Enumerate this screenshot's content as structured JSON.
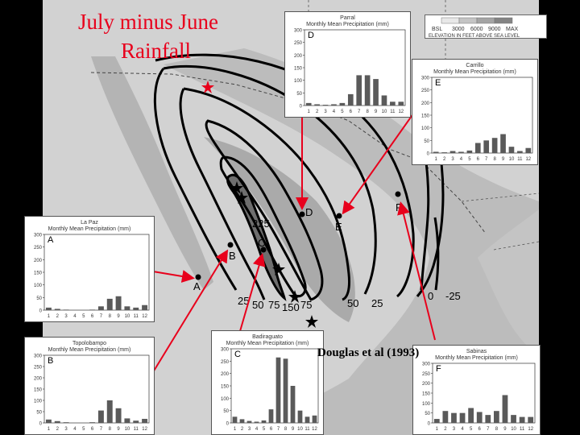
{
  "title": {
    "line1": "July minus June",
    "line2": "Rainfall"
  },
  "citation": "Douglas et al (1993)",
  "legend": {
    "scale_labels": [
      "BSL",
      "3000",
      "6000",
      "9000",
      "MAX"
    ],
    "caption": "ELEVATION IN FEET ABOVE SEA LEVEL"
  },
  "contour_labels": [
    "225",
    "25",
    "50",
    "75",
    "150",
    "75",
    "50",
    "25",
    "0",
    "-25"
  ],
  "colors": {
    "title": "#e8001c",
    "arrow": "#e8001c",
    "bars": "#5a5a5a"
  },
  "station_labels": [
    "A",
    "B",
    "C",
    "D",
    "E",
    "F"
  ],
  "chart_data": [
    {
      "type": "bar",
      "id": "A",
      "name": "La Paz",
      "title": "Monthly Mean Precipitation (mm)",
      "categories": [
        "1",
        "2",
        "3",
        "4",
        "5",
        "6",
        "7",
        "8",
        "9",
        "10",
        "11",
        "12"
      ],
      "values": [
        10,
        5,
        2,
        0,
        0,
        2,
        15,
        45,
        55,
        15,
        10,
        20
      ],
      "ylim": [
        0,
        300
      ],
      "yticks": [
        0,
        50,
        100,
        150,
        200,
        250,
        300
      ]
    },
    {
      "type": "bar",
      "id": "B",
      "name": "Topolobampo",
      "title": "Monthly Mean Precipitation (mm)",
      "categories": [
        "1",
        "2",
        "3",
        "4",
        "5",
        "6",
        "7",
        "8",
        "9",
        "10",
        "11",
        "12"
      ],
      "values": [
        15,
        8,
        3,
        0,
        0,
        3,
        55,
        100,
        65,
        20,
        10,
        18
      ],
      "ylim": [
        0,
        300
      ],
      "yticks": [
        0,
        50,
        100,
        150,
        200,
        250,
        300
      ]
    },
    {
      "type": "bar",
      "id": "C",
      "name": "Badiraguato",
      "title": "Monthly Mean Precipitation (mm)",
      "categories": [
        "1",
        "2",
        "3",
        "4",
        "5",
        "6",
        "7",
        "8",
        "9",
        "10",
        "11",
        "12"
      ],
      "values": [
        25,
        15,
        8,
        5,
        10,
        55,
        265,
        260,
        150,
        50,
        25,
        30
      ],
      "ylim": [
        0,
        300
      ],
      "yticks": [
        0,
        50,
        100,
        150,
        200,
        250,
        300
      ]
    },
    {
      "type": "bar",
      "id": "D",
      "name": "Parral",
      "title": "Monthly Mean Precipitation (mm)",
      "categories": [
        "1",
        "2",
        "3",
        "4",
        "5",
        "6",
        "7",
        "8",
        "9",
        "10",
        "11",
        "12"
      ],
      "values": [
        10,
        5,
        3,
        5,
        10,
        45,
        120,
        120,
        105,
        40,
        15,
        15
      ],
      "ylim": [
        0,
        300
      ],
      "yticks": [
        0,
        50,
        100,
        150,
        200,
        250,
        300
      ]
    },
    {
      "type": "bar",
      "id": "E",
      "name": "Carrillo",
      "title": "Monthly Mean Precipitation (mm)",
      "categories": [
        "1",
        "2",
        "3",
        "4",
        "5",
        "6",
        "7",
        "8",
        "9",
        "10",
        "11",
        "12"
      ],
      "values": [
        5,
        3,
        8,
        5,
        10,
        40,
        50,
        60,
        75,
        25,
        8,
        20
      ],
      "ylim": [
        0,
        300
      ],
      "yticks": [
        0,
        50,
        100,
        150,
        200,
        250,
        300
      ]
    },
    {
      "type": "bar",
      "id": "F",
      "name": "Sabinas",
      "title": "Monthly Mean Precipitation (mm)",
      "categories": [
        "1",
        "2",
        "3",
        "4",
        "5",
        "6",
        "7",
        "8",
        "9",
        "10",
        "11",
        "12"
      ],
      "values": [
        20,
        60,
        50,
        50,
        75,
        55,
        40,
        60,
        140,
        40,
        30,
        30
      ],
      "ylim": [
        0,
        300
      ],
      "yticks": [
        0,
        50,
        100,
        150,
        200,
        250,
        300
      ]
    }
  ]
}
